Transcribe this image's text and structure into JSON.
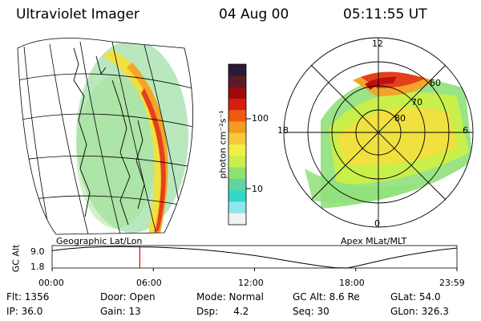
{
  "header": {
    "instrument": "Ultraviolet Imager",
    "date": "04 Aug 00",
    "time": "05:11:55 UT"
  },
  "colorbar": {
    "units_label": "photon cm⁻²s⁻¹",
    "ticks": [
      "100",
      "10"
    ],
    "colors": [
      "#f2f2f2",
      "#8fe6f2",
      "#33d9c8",
      "#5fd6a0",
      "#8ee070",
      "#c8ef4a",
      "#f0f046",
      "#f7c93c",
      "#f59a25",
      "#ef5a12",
      "#d61d0e",
      "#9e0a0a",
      "#5a1a2a",
      "#2a1a3a"
    ]
  },
  "left_map": {
    "caption": "Geographic Lat/Lon"
  },
  "right_polar": {
    "caption": "Apex MLat/MLT",
    "lat_labels": [
      "60",
      "70",
      "80"
    ],
    "mlt_labels": {
      "top": "12",
      "left": "18",
      "right": "6",
      "bottom": "0"
    }
  },
  "timeline": {
    "ylabel": "GC Alt",
    "y_ticks": [
      "9.0",
      "1.8"
    ],
    "x_ticks": [
      "00:00",
      "06:00",
      "12:00",
      "18:00",
      "23:59"
    ],
    "accent": "#e00000",
    "chart_data": {
      "type": "line",
      "title": "",
      "xlabel": "",
      "ylabel": "GC Alt",
      "xlim": [
        0,
        24
      ],
      "ylim": [
        1.8,
        9.0
      ],
      "series": [
        {
          "values_x": [
            0,
            1,
            2,
            3,
            4,
            5,
            6,
            7,
            8,
            9,
            10,
            11,
            12,
            13,
            14,
            15,
            16,
            16.8,
            17.5,
            18.2,
            19,
            20,
            21,
            22,
            23,
            23.98
          ],
          "values": [
            7.4,
            8.0,
            8.4,
            8.6,
            8.7,
            8.6,
            8.5,
            8.3,
            8.0,
            7.6,
            7.1,
            6.5,
            5.8,
            5.0,
            4.1,
            3.2,
            2.4,
            1.9,
            1.8,
            2.6,
            3.6,
            4.8,
            5.9,
            6.8,
            7.6,
            8.2
          ]
        }
      ],
      "marker_time": 5.2
    }
  },
  "info": {
    "flt": "Flt: 1356",
    "ip": "IP: 36.0",
    "door": "Door: Open",
    "gain": "Gain: 13",
    "mode": "Mode: Normal",
    "dsp": "Dsp:     4.2",
    "gcalt": "GC Alt: 8.6 Re",
    "seq": "Seq: 30",
    "glat": "GLat:  54.0",
    "glon": "GLon: 326.3"
  }
}
